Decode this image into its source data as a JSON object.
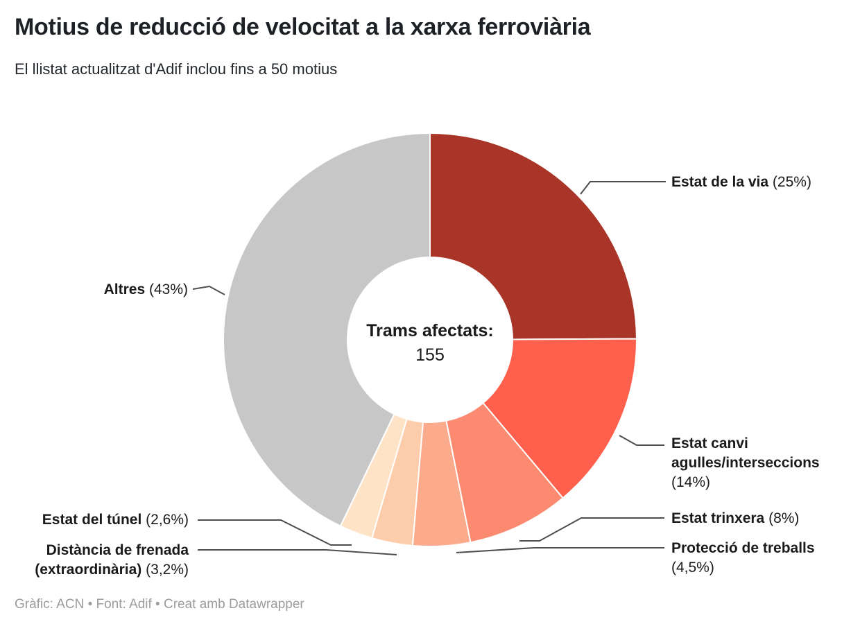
{
  "header": {
    "title": "Motius de reducció de velocitat a la xarxa ferroviària",
    "subtitle": "El llistat actualitzat d'Adif inclou fins a 50 motius"
  },
  "center": {
    "label": "Trams afectats:",
    "value": "155"
  },
  "footer": {
    "text": "Gràfic: ACN • Font: Adif • Creat amb Datawrapper"
  },
  "colors": {
    "background": "#ffffff",
    "text": "#1a1a1a",
    "leader_line": "#4d4d4d",
    "slice_stroke": "#ffffff",
    "footer_text": "#9b9b9b"
  },
  "chart_data": {
    "type": "pie",
    "variant": "donut",
    "title": "Motius de reducció de velocitat a la xarxa ferroviària",
    "subtitle": "El llistat actualitzat d'Adif inclou fins a 50 motius",
    "center_label": "Trams afectats:",
    "center_value": 155,
    "start_angle_deg": 0,
    "direction": "clockwise",
    "segments": [
      {
        "label": "Estat de la via",
        "pct_text": "(25%)",
        "value": 25,
        "color": "#a93528"
      },
      {
        "label": "Estat canvi agulles/interseccions",
        "pct_text": "(14%)",
        "value": 14,
        "color": "#fe604d"
      },
      {
        "label": "Estat trinxera",
        "pct_text": "(8%)",
        "value": 8,
        "color": "#fb8a70"
      },
      {
        "label": "Protecció de treballs",
        "pct_text": "(4,5%)",
        "value": 4.5,
        "color": "#fcaa8c"
      },
      {
        "label": "Distància de frenada (extraordinària)",
        "pct_text": "(3,2%)",
        "value": 3.2,
        "color": "#fdccab"
      },
      {
        "label": "Estat del túnel",
        "pct_text": "(2,6%)",
        "value": 2.6,
        "color": "#fee3c6"
      },
      {
        "label": "Altres",
        "pct_text": "(43%)",
        "value": 43,
        "color": "#c7c7c7"
      }
    ]
  }
}
